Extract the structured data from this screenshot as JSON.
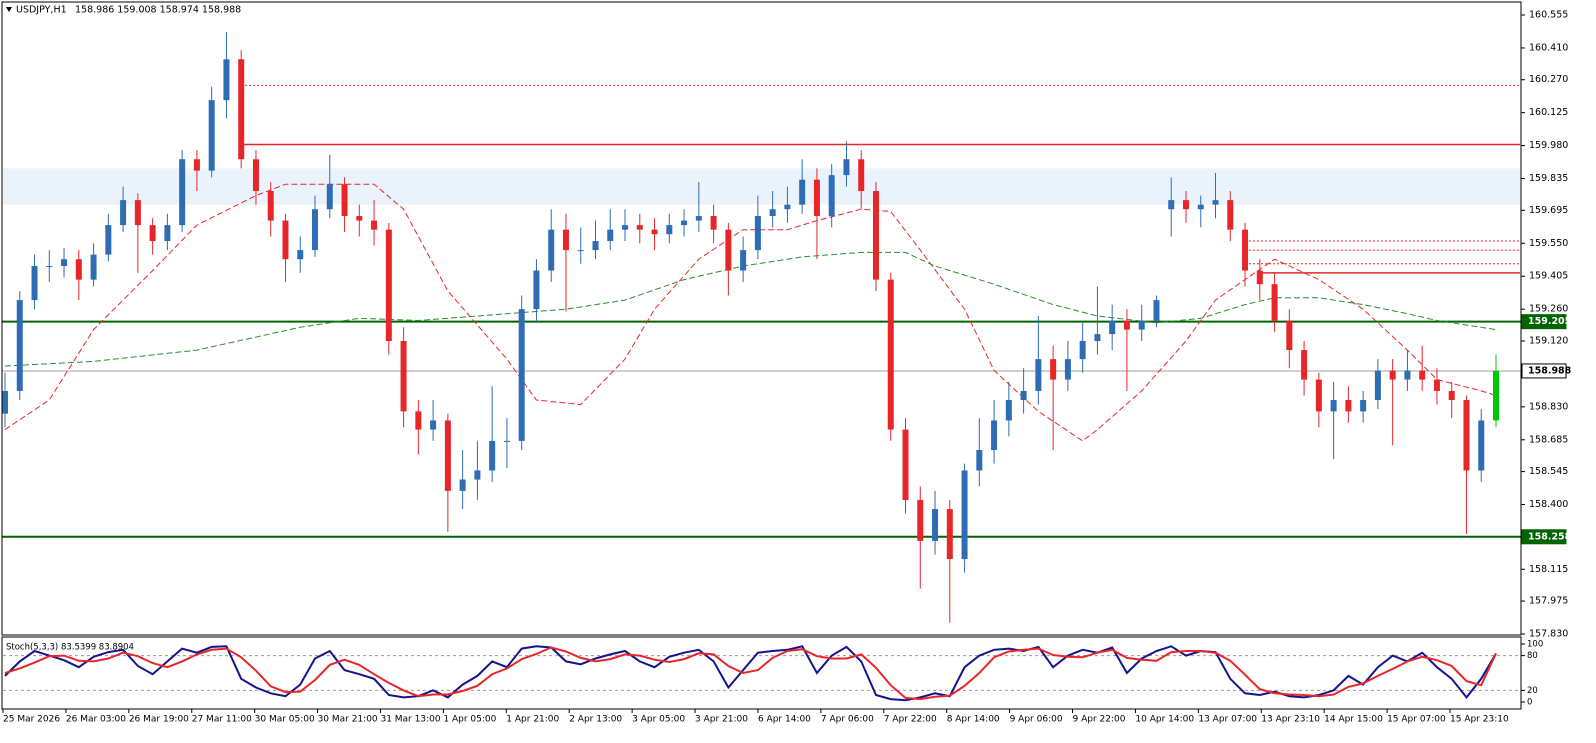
{
  "chart_data": {
    "type": "candlestick",
    "title": "USDJPY,H1",
    "quote": "158.986 159.008 158.974 158.988",
    "ylim": [
      157.83,
      160.555
    ],
    "yticks": [
      160.555,
      {
        "value": 160.41,
        "label": "160.410"
      },
      {
        "value": 160.27,
        "label": "160.270"
      },
      160.125,
      {
        "value": 159.98,
        "label": "159.980"
      },
      159.835,
      159.695,
      {
        "value": 159.55,
        "label": "159.550"
      },
      159.405,
      {
        "value": 159.26,
        "label": "159.260"
      },
      {
        "value": 159.12,
        "label": "159.120"
      },
      {
        "value": 158.83,
        "label": "158.830"
      },
      158.685,
      158.545,
      {
        "value": 158.4,
        "label": "158.400"
      },
      158.115,
      157.975,
      {
        "value": 157.83,
        "label": "157.830"
      }
    ],
    "xlabels": [
      "25 Mar 2026",
      "26 Mar 03:00",
      "26 Mar 19:00",
      "27 Mar 11:00",
      "30 Mar 05:00",
      "30 Mar 21:00",
      "31 Mar 13:00",
      "1 Apr 05:00",
      "1 Apr 21:00",
      "2 Apr 13:00",
      "3 Apr 05:00",
      "3 Apr 21:00",
      "6 Apr 14:00",
      "7 Apr 06:00",
      "7 Apr 22:00",
      "8 Apr 14:00",
      "9 Apr 06:00",
      "9 Apr 22:00",
      "10 Apr 14:00",
      "13 Apr 07:00",
      "13 Apr 23:10",
      "14 Apr 15:00",
      "15 Apr 07:00",
      "15 Apr 23:10"
    ],
    "up_color": "#2e6db4",
    "down_color": "#e8262a",
    "last_color": "#00c800",
    "candles": [
      [
        158.8,
        158.98,
        158.74,
        158.9
      ],
      [
        158.9,
        159.34,
        158.86,
        159.3
      ],
      [
        159.3,
        159.5,
        159.26,
        159.45
      ],
      [
        159.45,
        159.52,
        159.38,
        159.45
      ],
      [
        159.45,
        159.53,
        159.4,
        159.48
      ],
      [
        159.48,
        159.52,
        159.3,
        159.39
      ],
      [
        159.39,
        159.55,
        159.36,
        159.5
      ],
      [
        159.5,
        159.68,
        159.47,
        159.63
      ],
      [
        159.63,
        159.8,
        159.6,
        159.74
      ],
      [
        159.74,
        159.77,
        159.42,
        159.63
      ],
      [
        159.63,
        159.66,
        159.5,
        159.56
      ],
      [
        159.56,
        159.68,
        159.52,
        159.63
      ],
      [
        159.63,
        159.96,
        159.6,
        159.92
      ],
      [
        159.92,
        159.96,
        159.78,
        159.87
      ],
      [
        159.87,
        160.24,
        159.84,
        160.18
      ],
      [
        160.18,
        160.48,
        160.1,
        160.36
      ],
      [
        160.36,
        160.4,
        159.88,
        159.92
      ],
      [
        159.92,
        159.96,
        159.72,
        159.78
      ],
      [
        159.78,
        159.82,
        159.58,
        159.65
      ],
      [
        159.65,
        159.68,
        159.38,
        159.48
      ],
      [
        159.48,
        159.58,
        159.42,
        159.52
      ],
      [
        159.52,
        159.76,
        159.49,
        159.7
      ],
      [
        159.7,
        159.94,
        159.66,
        159.81
      ],
      [
        159.81,
        159.84,
        159.6,
        159.67
      ],
      [
        159.67,
        159.72,
        159.58,
        159.65
      ],
      [
        159.65,
        159.74,
        159.54,
        159.61
      ],
      [
        159.61,
        159.64,
        159.06,
        159.12
      ],
      [
        159.12,
        159.18,
        158.74,
        158.81
      ],
      [
        158.81,
        158.86,
        158.62,
        158.73
      ],
      [
        158.73,
        158.86,
        158.68,
        158.77
      ],
      [
        158.77,
        158.8,
        158.28,
        158.46
      ],
      [
        158.46,
        158.64,
        158.38,
        158.51
      ],
      [
        158.51,
        158.68,
        158.42,
        158.55
      ],
      [
        158.55,
        158.92,
        158.5,
        158.68
      ],
      [
        158.68,
        158.78,
        158.56,
        158.68
      ],
      [
        158.68,
        159.32,
        158.64,
        159.26
      ],
      [
        159.26,
        159.48,
        159.2,
        159.43
      ],
      [
        159.43,
        159.7,
        159.38,
        159.61
      ],
      [
        159.61,
        159.68,
        159.25,
        159.52
      ],
      [
        159.52,
        159.62,
        159.46,
        159.52
      ],
      [
        159.52,
        159.65,
        159.48,
        159.56
      ],
      [
        159.56,
        159.7,
        159.52,
        159.61
      ],
      [
        159.61,
        159.7,
        159.56,
        159.63
      ],
      [
        159.63,
        159.68,
        159.55,
        159.61
      ],
      [
        159.61,
        159.66,
        159.52,
        159.59
      ],
      [
        159.59,
        159.68,
        159.55,
        159.63
      ],
      [
        159.63,
        159.7,
        159.58,
        159.65
      ],
      [
        159.65,
        159.82,
        159.6,
        159.67
      ],
      [
        159.67,
        159.72,
        159.55,
        159.61
      ],
      [
        159.61,
        159.64,
        159.32,
        159.43
      ],
      [
        159.43,
        159.58,
        159.38,
        159.52
      ],
      [
        159.52,
        159.76,
        159.48,
        159.67
      ],
      [
        159.67,
        159.78,
        159.62,
        159.7
      ],
      [
        159.7,
        159.8,
        159.64,
        159.72
      ],
      [
        159.72,
        159.92,
        159.68,
        159.83
      ],
      [
        159.83,
        159.88,
        159.48,
        159.67
      ],
      [
        159.67,
        159.9,
        159.62,
        159.85
      ],
      [
        159.85,
        160.0,
        159.8,
        159.92
      ],
      [
        159.92,
        159.96,
        159.7,
        159.78
      ],
      [
        159.78,
        159.82,
        159.34,
        159.39
      ],
      [
        159.39,
        159.42,
        158.68,
        158.73
      ],
      [
        158.73,
        158.78,
        158.36,
        158.42
      ],
      [
        158.42,
        158.48,
        158.03,
        158.24
      ],
      [
        158.24,
        158.46,
        158.18,
        158.38
      ],
      [
        158.38,
        158.42,
        157.88,
        158.16
      ],
      [
        158.16,
        158.58,
        158.1,
        158.55
      ],
      [
        158.55,
        158.78,
        158.48,
        158.64
      ],
      [
        158.64,
        158.86,
        158.58,
        158.77
      ],
      [
        158.77,
        158.94,
        158.7,
        158.86
      ],
      [
        158.86,
        159.0,
        158.8,
        158.9
      ],
      [
        158.9,
        159.23,
        158.84,
        159.04
      ],
      [
        159.04,
        159.1,
        158.64,
        158.95
      ],
      [
        158.95,
        159.12,
        158.9,
        159.04
      ],
      [
        159.04,
        159.2,
        158.98,
        159.12
      ],
      [
        159.12,
        159.36,
        159.06,
        159.15
      ],
      [
        159.15,
        159.28,
        159.08,
        159.21
      ],
      [
        159.21,
        159.26,
        158.9,
        159.17
      ],
      [
        159.17,
        159.28,
        159.12,
        159.21
      ],
      [
        159.21,
        159.32,
        159.18,
        159.3
      ],
      [
        159.7,
        159.84,
        159.58,
        159.74
      ],
      [
        159.74,
        159.78,
        159.64,
        159.7
      ],
      [
        159.7,
        159.76,
        159.62,
        159.72
      ],
      [
        159.72,
        159.86,
        159.66,
        159.74
      ],
      [
        159.74,
        159.78,
        159.56,
        159.61
      ],
      [
        159.61,
        159.64,
        159.36,
        159.43
      ],
      [
        159.43,
        159.48,
        159.3,
        159.37
      ],
      [
        159.37,
        159.42,
        159.16,
        159.21
      ],
      [
        159.21,
        159.26,
        159.0,
        159.08
      ],
      [
        159.08,
        159.12,
        158.88,
        158.95
      ],
      [
        158.95,
        158.98,
        158.74,
        158.81
      ],
      [
        158.81,
        158.94,
        158.6,
        158.86
      ],
      [
        158.86,
        158.92,
        158.76,
        158.81
      ],
      [
        158.81,
        158.9,
        158.76,
        158.86
      ],
      [
        158.86,
        159.04,
        158.82,
        158.99
      ],
      [
        158.99,
        159.04,
        158.66,
        158.95
      ],
      [
        158.95,
        159.08,
        158.9,
        158.99
      ],
      [
        158.99,
        159.1,
        158.9,
        158.95
      ],
      [
        158.95,
        159.0,
        158.84,
        158.9
      ],
      [
        158.9,
        158.94,
        158.78,
        158.86
      ],
      [
        158.86,
        158.88,
        158.27,
        158.55
      ],
      [
        158.55,
        158.82,
        158.5,
        158.77
      ],
      [
        158.77,
        159.06,
        158.74,
        158.988
      ]
    ],
    "moving_averages": [
      {
        "color": "#e8262a",
        "index": [
          0,
          3,
          6,
          10,
          13,
          17,
          19,
          22,
          25,
          27,
          30,
          34,
          36,
          39,
          42,
          44,
          47,
          50,
          53,
          55,
          58,
          60,
          62,
          65,
          67,
          70,
          73,
          74,
          77,
          80,
          82,
          84,
          86,
          89,
          92,
          95,
          97,
          100,
          101
        ],
        "values": [
          158.73,
          158.86,
          159.17,
          159.43,
          159.63,
          159.76,
          159.81,
          159.81,
          159.81,
          159.7,
          159.34,
          159.04,
          158.86,
          158.84,
          159.04,
          159.26,
          159.48,
          159.61,
          159.61,
          159.65,
          159.7,
          159.69,
          159.52,
          159.26,
          158.99,
          158.81,
          158.68,
          158.73,
          158.9,
          159.12,
          159.3,
          159.39,
          159.48,
          159.39,
          159.26,
          159.08,
          158.95,
          158.9,
          158.88
        ]
      },
      {
        "color": "#2e8b2e",
        "index": [
          0,
          6,
          13,
          20,
          24,
          28,
          32,
          38,
          42,
          46,
          50,
          54,
          58,
          61,
          63,
          67,
          71,
          74,
          78,
          81,
          84,
          86,
          89,
          92,
          95,
          97,
          101
        ],
        "values": [
          159.01,
          159.03,
          159.08,
          159.18,
          159.22,
          159.21,
          159.23,
          159.26,
          159.3,
          159.39,
          159.45,
          159.49,
          159.51,
          159.51,
          159.45,
          159.37,
          159.28,
          159.23,
          159.2,
          159.22,
          159.28,
          159.31,
          159.31,
          159.28,
          159.24,
          159.21,
          159.17
        ]
      }
    ],
    "zone": {
      "from": 159.72,
      "to": 159.88,
      "color": "#eaf3fc"
    },
    "levels": [
      {
        "value": 159.205,
        "color": "#006400"
      },
      {
        "value": 158.988,
        "color": "#a0a0a0"
      },
      {
        "value": 158.258,
        "color": "#006400"
      }
    ],
    "red_lines": [
      {
        "value": 160.245,
        "start": 16,
        "dashed": true
      },
      {
        "value": 159.985,
        "start": 16,
        "dashed": false
      },
      {
        "value": 159.56,
        "start": 84,
        "dashed": true
      },
      {
        "value": 159.52,
        "start": 84,
        "dashed": true
      },
      {
        "value": 159.46,
        "start": 84,
        "dashed": true
      },
      {
        "value": 159.42,
        "start": 85,
        "dashed": false
      }
    ],
    "stochastic": {
      "title": "Stoch(5,3,3) 83.5399 83.8904",
      "ylim": [
        0,
        100
      ],
      "yticks": [
        100,
        80,
        20,
        0
      ],
      "levels": [
        80,
        20
      ],
      "series": [
        {
          "color": "#14148c",
          "values": [
            45,
            70,
            88,
            80,
            72,
            60,
            78,
            86,
            90,
            62,
            48,
            70,
            92,
            85,
            95,
            96,
            40,
            25,
            15,
            10,
            30,
            75,
            88,
            55,
            48,
            40,
            12,
            8,
            10,
            20,
            8,
            30,
            45,
            70,
            60,
            92,
            96,
            94,
            70,
            65,
            75,
            82,
            88,
            70,
            60,
            78,
            85,
            90,
            70,
            25,
            55,
            85,
            88,
            90,
            96,
            50,
            80,
            95,
            70,
            12,
            5,
            3,
            8,
            15,
            10,
            60,
            80,
            90,
            92,
            88,
            95,
            60,
            80,
            90,
            85,
            94,
            50,
            75,
            88,
            96,
            80,
            88,
            86,
            40,
            15,
            12,
            18,
            10,
            8,
            12,
            20,
            45,
            30,
            60,
            80,
            70,
            85,
            60,
            40,
            8,
            40,
            83.5399
          ]
        },
        {
          "color": "#e8262a",
          "values": [
            50,
            58,
            68,
            79,
            80,
            71,
            70,
            75,
            85,
            79,
            67,
            60,
            70,
            82,
            90,
            92,
            77,
            54,
            27,
            17,
            18,
            38,
            64,
            73,
            64,
            48,
            33,
            20,
            10,
            13,
            13,
            19,
            28,
            48,
            58,
            74,
            83,
            94,
            87,
            76,
            70,
            74,
            82,
            80,
            73,
            69,
            74,
            84,
            82,
            62,
            50,
            55,
            76,
            88,
            91,
            79,
            75,
            75,
            82,
            59,
            29,
            7,
            5,
            9,
            11,
            28,
            50,
            77,
            87,
            90,
            92,
            81,
            78,
            77,
            85,
            90,
            76,
            73,
            71,
            86,
            88,
            88,
            85,
            71,
            47,
            22,
            15,
            13,
            12,
            10,
            13,
            26,
            32,
            45,
            57,
            70,
            78,
            72,
            62,
            36,
            29,
            83.8904
          ]
        }
      ]
    }
  }
}
